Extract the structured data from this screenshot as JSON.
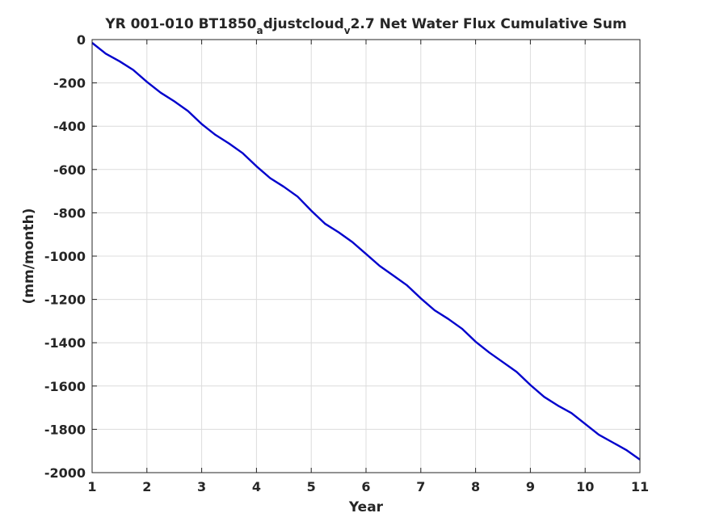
{
  "chart_data": {
    "type": "line",
    "title": {
      "part1": "YR 001-010 BT1850",
      "sub1": "a",
      "part2": "djustcloud",
      "sub2": "v",
      "part3": "2.7 Net Water Flux Cumulative Sum"
    },
    "xlabel": "Year",
    "ylabel": "(mm/month)",
    "xlim": [
      1,
      11
    ],
    "ylim": [
      -2000,
      0
    ],
    "xticks": [
      1,
      2,
      3,
      4,
      5,
      6,
      7,
      8,
      9,
      10,
      11
    ],
    "yticks": [
      0,
      -200,
      -400,
      -600,
      -800,
      -1000,
      -1200,
      -1400,
      -1600,
      -1800,
      -2000
    ],
    "grid": true,
    "series": [
      {
        "color": "#0000cc",
        "x": [
          1.0,
          1.25,
          1.5,
          1.75,
          2.0,
          2.25,
          2.5,
          2.75,
          3.0,
          3.25,
          3.5,
          3.75,
          4.0,
          4.25,
          4.5,
          4.75,
          5.0,
          5.25,
          5.5,
          5.75,
          6.0,
          6.25,
          6.5,
          6.75,
          7.0,
          7.25,
          7.5,
          7.75,
          8.0,
          8.25,
          8.5,
          8.75,
          9.0,
          9.25,
          9.5,
          9.75,
          10.0,
          10.25,
          10.5,
          10.75,
          11.0
        ],
        "y": [
          -15,
          -65,
          -100,
          -140,
          -195,
          -245,
          -285,
          -330,
          -390,
          -440,
          -480,
          -525,
          -585,
          -640,
          -680,
          -725,
          -790,
          -850,
          -890,
          -935,
          -990,
          -1045,
          -1090,
          -1135,
          -1195,
          -1250,
          -1290,
          -1335,
          -1395,
          -1445,
          -1490,
          -1535,
          -1595,
          -1650,
          -1690,
          -1725,
          -1775,
          -1825,
          -1860,
          -1895,
          -1940
        ]
      }
    ]
  }
}
